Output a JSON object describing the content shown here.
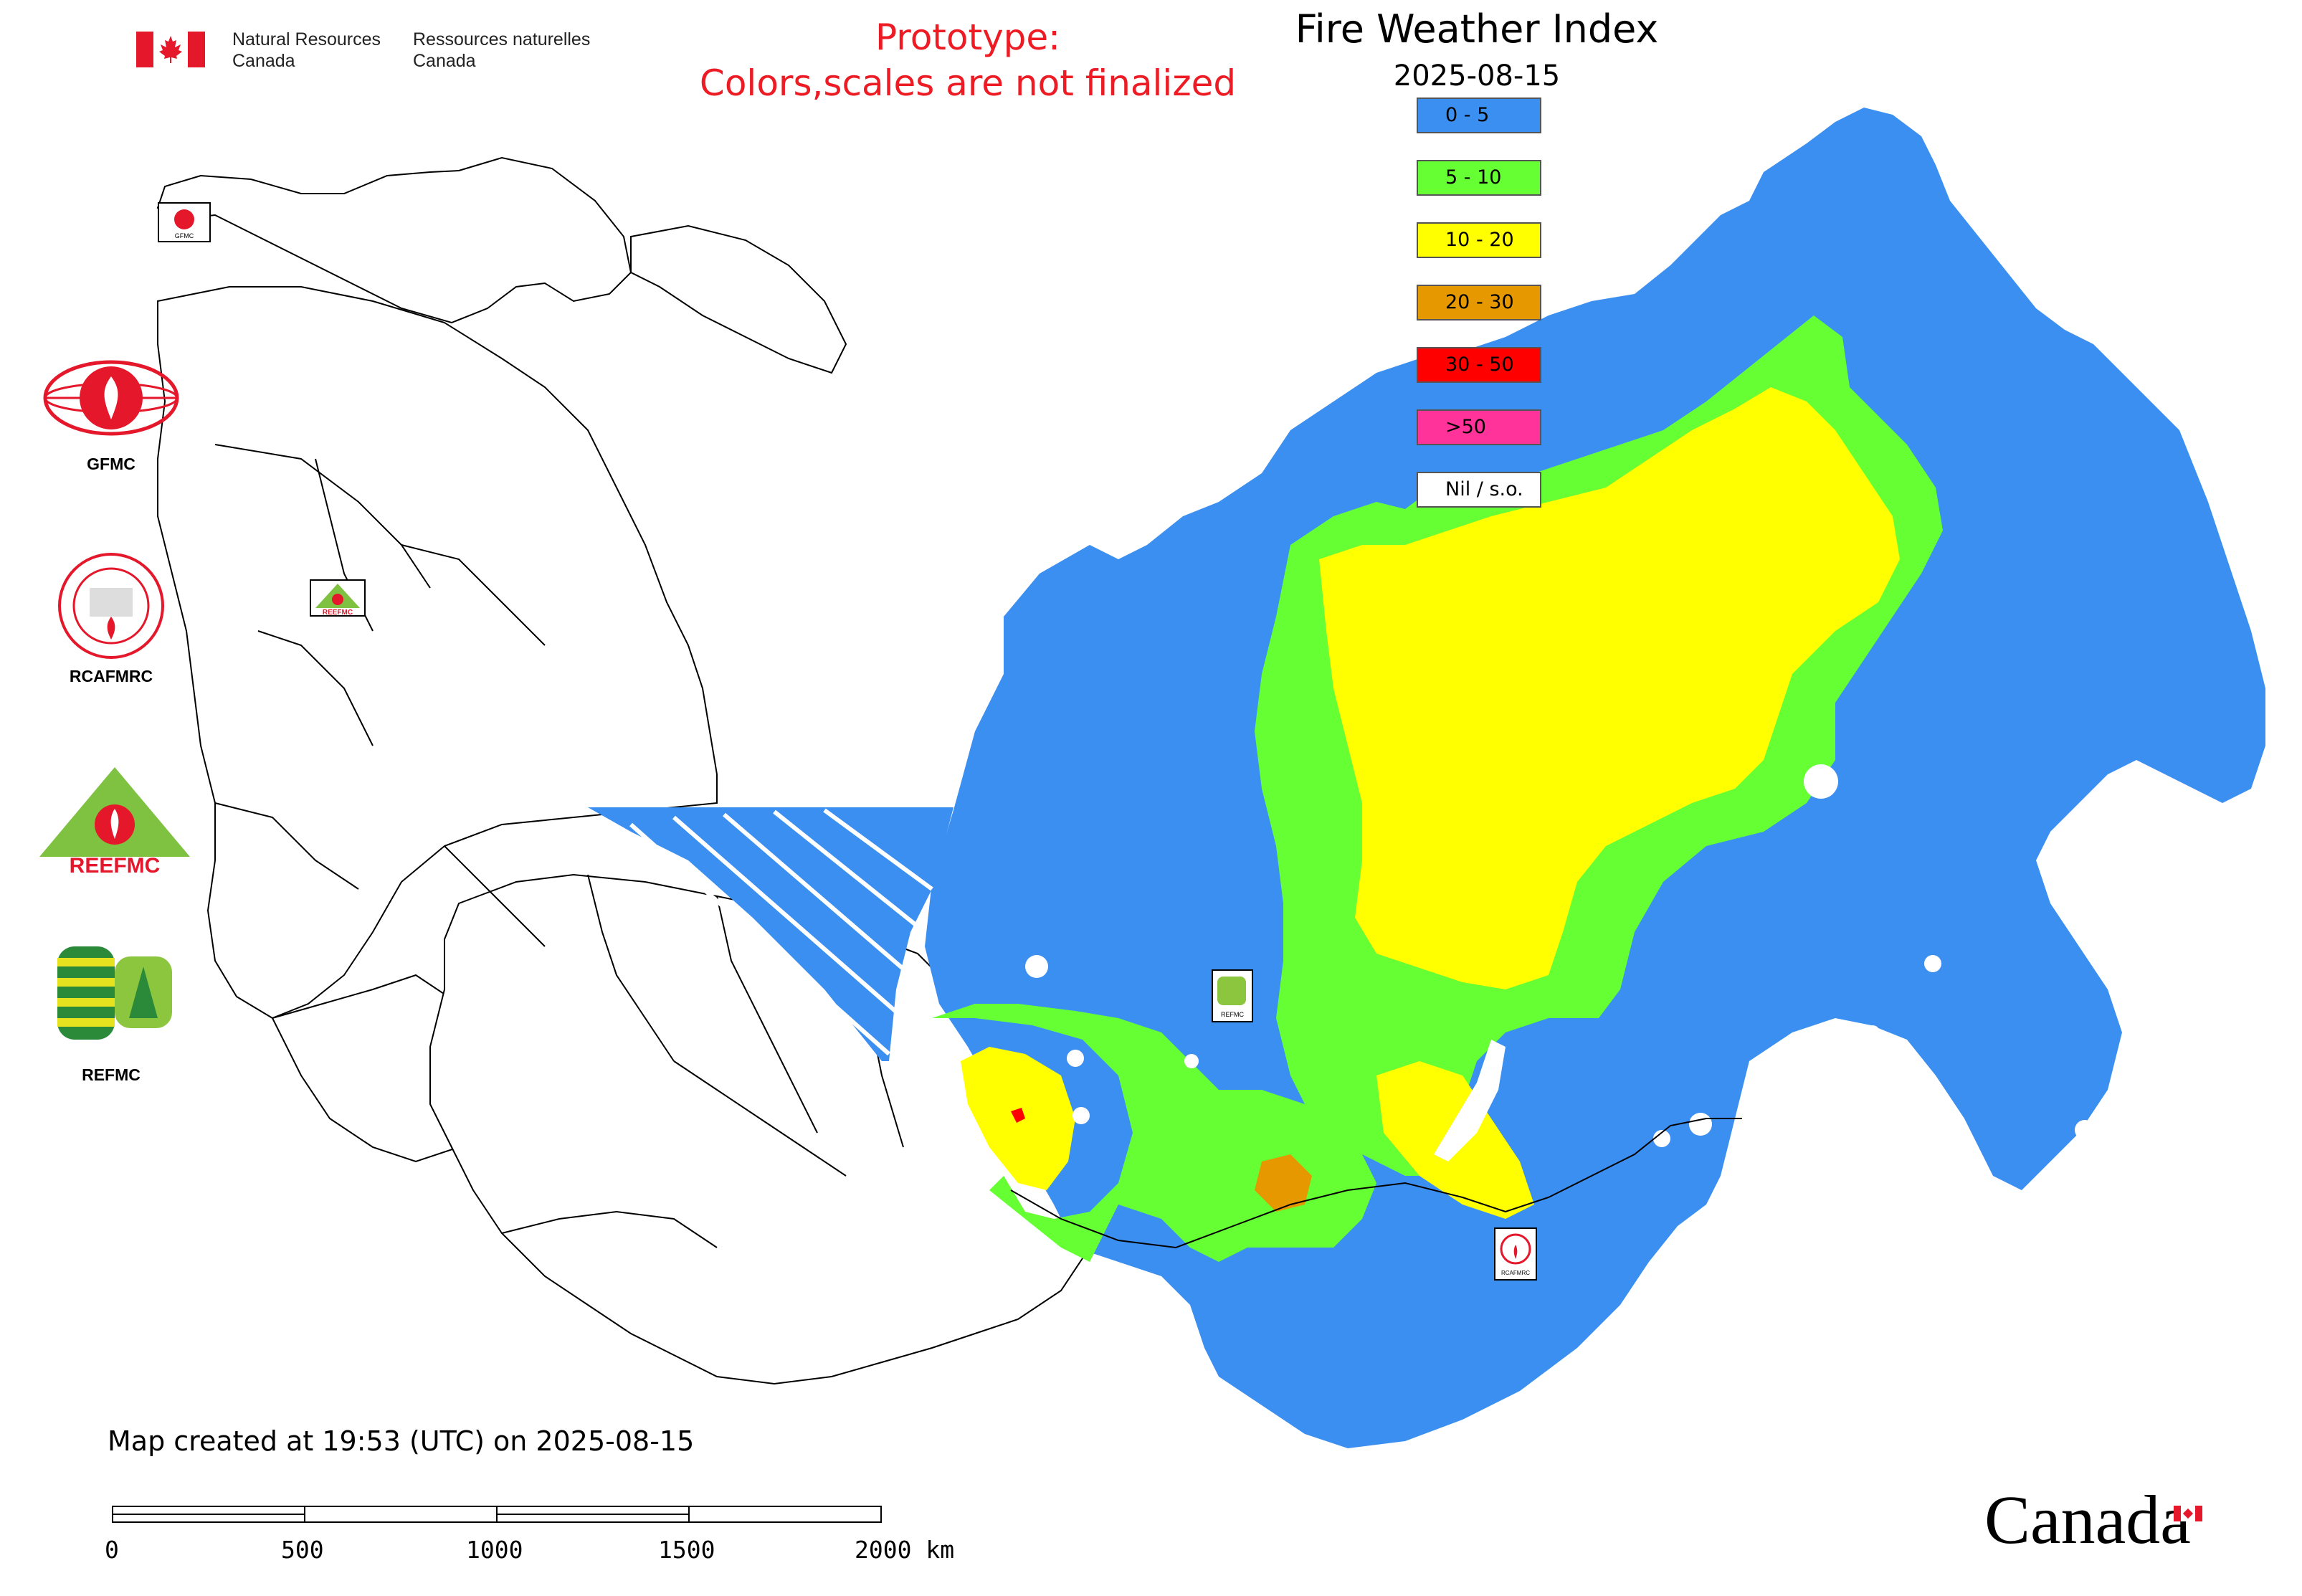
{
  "header": {
    "dept_en": [
      "Natural Resources",
      "Canada"
    ],
    "dept_fr": [
      "Ressources naturelles",
      "Canada"
    ],
    "prototype_line1": "Prototype:",
    "prototype_line2": "Colors,scales are not finalized",
    "title": "Fire Weather Index",
    "date": "2025-08-15"
  },
  "legend": [
    {
      "label": "0 - 5",
      "color": "#3b8ff0"
    },
    {
      "label": "5 - 10",
      "color": "#66ff33"
    },
    {
      "label": "10 - 20",
      "color": "#ffff00"
    },
    {
      "label": "20 - 30",
      "color": "#e69800"
    },
    {
      "label": "30 - 50",
      "color": "#ff0000"
    },
    {
      "label": ">50",
      "color": "#ff3399"
    },
    {
      "label": "Nil / s.o.",
      "color": "#ffffff"
    }
  ],
  "agencies": [
    {
      "label": "GFMC",
      "icon": "gfmc-logo-icon"
    },
    {
      "label": "RCAFMRC",
      "icon": "rcafmrc-logo-icon"
    },
    {
      "label": "",
      "icon": "reefmc-logo-icon",
      "wordmark": "REEFMC"
    },
    {
      "label": "REFMC",
      "icon": "refmc-logo-icon"
    }
  ],
  "map_markers": [
    {
      "label": "GFMC",
      "icon": "gfmc-marker-icon"
    },
    {
      "label": "REEFMC",
      "icon": "reefmc-marker-icon"
    },
    {
      "label": "REFMC",
      "icon": "refmc-marker-icon"
    },
    {
      "label": "RCAFMRC",
      "icon": "rcafmrc-marker-icon"
    }
  ],
  "footer": {
    "credit": "Map created at 19:53 (UTC) on 2025-08-15",
    "scale_labels": [
      "0",
      "500",
      "1000",
      "1500",
      "2000 km"
    ],
    "wordmark": "Canada"
  },
  "colors": {
    "fwi_0_5": "#3b8ff0",
    "fwi_5_10": "#66ff33",
    "fwi_10_20": "#ffff00",
    "fwi_20_30": "#e69800",
    "fwi_30_50": "#ff0000",
    "prototype_text": "#ed1c24",
    "canada_red": "#e4172b"
  }
}
